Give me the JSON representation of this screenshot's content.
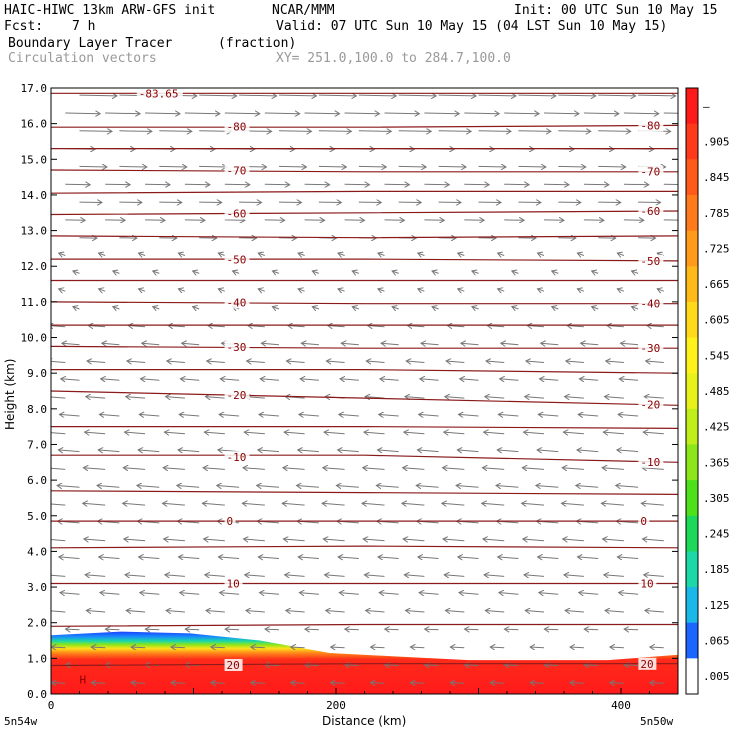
{
  "header": {
    "model": "HAIC-HIWC 13km ARW-GFS init",
    "org": "NCAR/MMM",
    "init": "Init: 00 UTC Sun 10 May 15",
    "fcst_label": "Fcst:",
    "fcst_value": "7 h",
    "valid": "Valid: 07 UTC Sun 10 May 15 (04 LST Sun 10 May 15)",
    "field": "Boundary Layer Tracer",
    "unit": "(fraction)",
    "field2": "Circulation vectors",
    "xy": "XY= 251.0,100.0 to 284.7,100.0"
  },
  "chart_data": {
    "type": "heatmap",
    "ylabel": "Height (km)",
    "xlabel": "Distance (km)",
    "ylim": [
      0,
      17
    ],
    "xlim": [
      0,
      440
    ],
    "yticks": [
      "0.0",
      "1.0",
      "2.0",
      "3.0",
      "4.0",
      "5.0",
      "6.0",
      "7.0",
      "8.0",
      "9.0",
      "10.0",
      "11.0",
      "12.0",
      "13.0",
      "14.0",
      "15.0",
      "16.0",
      "17.0"
    ],
    "xticks": [
      {
        "v": 0,
        "label": "0"
      },
      {
        "v": 200,
        "label": "200"
      },
      {
        "v": 400,
        "label": "400"
      }
    ],
    "x_end_labels": [
      "5n54w",
      "5n50w"
    ],
    "colorbar": {
      "labels": [
        "–",
        ".905",
        ".845",
        ".785",
        ".725",
        ".665",
        ".605",
        ".545",
        ".485",
        ".425",
        ".365",
        ".305",
        ".245",
        ".185",
        ".125",
        ".065",
        ".005"
      ],
      "colors": [
        "#ff1a1a",
        "#ff3a1a",
        "#ff5a1a",
        "#ff7a1a",
        "#ff9a1a",
        "#ffba1a",
        "#ffda1a",
        "#fff21a",
        "#e8f21a",
        "#c0ee1a",
        "#8ce61a",
        "#4ee01a",
        "#1ed85a",
        "#1ad8a8",
        "#1ab8e8",
        "#1a66ff",
        "#ffffff"
      ]
    },
    "contours": [
      {
        "label": "-83.65",
        "y": [
          16.85,
          16.85,
          16.85
        ]
      },
      {
        "label": "-80",
        "y": [
          15.9,
          15.9,
          15.95
        ]
      },
      {
        "label": "",
        "y": [
          15.3,
          15.3,
          15.3
        ]
      },
      {
        "label": "-70",
        "y": [
          14.7,
          14.65,
          14.65
        ]
      },
      {
        "label": "",
        "y": [
          14.05,
          14.1,
          14.1
        ]
      },
      {
        "label": "-60",
        "y": [
          13.45,
          13.5,
          13.55
        ]
      },
      {
        "label": "",
        "y": [
          12.85,
          12.8,
          12.85
        ]
      },
      {
        "label": "-50",
        "y": [
          12.2,
          12.2,
          12.15
        ]
      },
      {
        "label": "",
        "y": [
          11.6,
          11.6,
          11.6
        ]
      },
      {
        "label": "-40",
        "y": [
          11.0,
          10.95,
          10.95
        ]
      },
      {
        "label": "",
        "y": [
          10.35,
          10.35,
          10.35
        ]
      },
      {
        "label": "-30",
        "y": [
          9.75,
          9.7,
          9.7
        ]
      },
      {
        "label": "",
        "y": [
          9.1,
          9.1,
          9.0
        ]
      },
      {
        "label": "-20",
        "y": [
          8.5,
          8.3,
          8.1
        ]
      },
      {
        "label": "",
        "y": [
          7.5,
          7.5,
          7.45
        ]
      },
      {
        "label": "-10",
        "y": [
          6.7,
          6.7,
          6.5
        ]
      },
      {
        "label": "",
        "y": [
          5.7,
          5.65,
          5.6
        ]
      },
      {
        "label": "0",
        "y": [
          4.85,
          4.85,
          4.85
        ]
      },
      {
        "label": "",
        "y": [
          4.1,
          4.15,
          4.1
        ]
      },
      {
        "label": "10",
        "y": [
          3.1,
          3.1,
          3.1
        ]
      },
      {
        "label": "",
        "y": [
          1.9,
          1.95,
          1.95
        ]
      },
      {
        "label": "20",
        "y": [
          0.8,
          0.85,
          0.85
        ]
      }
    ],
    "pbl_top_km": [
      1.65,
      1.75,
      1.7,
      1.5,
      1.15,
      1.05,
      0.95,
      0.95,
      0.95,
      1.1
    ],
    "annotation": "H"
  }
}
